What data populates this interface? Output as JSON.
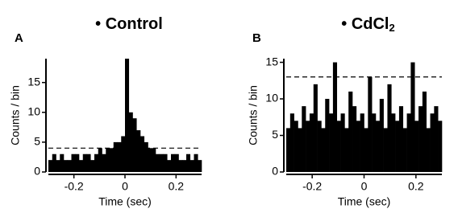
{
  "chart_data": [
    {
      "type": "histogram",
      "panel": "A",
      "title": "• Control",
      "xlabel": "Time (sec)",
      "ylabel": "Counts / bin",
      "bins": [
        -0.3,
        -0.285,
        -0.27,
        -0.255,
        -0.24,
        -0.225,
        -0.21,
        -0.195,
        -0.18,
        -0.165,
        -0.15,
        -0.135,
        -0.12,
        -0.105,
        -0.09,
        -0.075,
        -0.06,
        -0.045,
        -0.03,
        -0.015,
        0,
        0.015,
        0.03,
        0.045,
        0.06,
        0.075,
        0.09,
        0.105,
        0.12,
        0.135,
        0.15,
        0.165,
        0.18,
        0.195,
        0.21,
        0.225,
        0.24,
        0.255,
        0.27,
        0.285,
        0.3
      ],
      "values": [
        2,
        3,
        2,
        3,
        2,
        2,
        3,
        3,
        2,
        3,
        3,
        2,
        3,
        4,
        3,
        4,
        4,
        5,
        5,
        6,
        19,
        10,
        9,
        7,
        6,
        5,
        4,
        4,
        3,
        3,
        3,
        2,
        3,
        3,
        2,
        2,
        3,
        2,
        3,
        2
      ],
      "color": "#000000",
      "threshold": 4,
      "xlim": [
        -0.3,
        0.3
      ],
      "xticks": [
        -0.2,
        0,
        0.2
      ],
      "ylim": [
        0,
        19
      ],
      "yticks": [
        0,
        5,
        10,
        15
      ]
    },
    {
      "type": "histogram",
      "panel": "B",
      "title": "• CdCl",
      "title_subscript": "2",
      "xlabel": "Time (sec)",
      "ylabel": "Counts / bin",
      "bins": [
        -0.3,
        -0.285,
        -0.27,
        -0.255,
        -0.24,
        -0.225,
        -0.21,
        -0.195,
        -0.18,
        -0.165,
        -0.15,
        -0.135,
        -0.12,
        -0.105,
        -0.09,
        -0.075,
        -0.06,
        -0.045,
        -0.03,
        -0.015,
        0,
        0.015,
        0.03,
        0.045,
        0.06,
        0.075,
        0.09,
        0.105,
        0.12,
        0.135,
        0.15,
        0.165,
        0.18,
        0.195,
        0.21,
        0.225,
        0.24,
        0.255,
        0.27,
        0.285,
        0.3
      ],
      "values": [
        6,
        8,
        7,
        6,
        9,
        7,
        8,
        12,
        7,
        6,
        10,
        8,
        15,
        7,
        8,
        6,
        11,
        9,
        7,
        8,
        6,
        13,
        8,
        7,
        10,
        6,
        12,
        8,
        7,
        9,
        6,
        8,
        15,
        7,
        9,
        11,
        6,
        8,
        9,
        7
      ],
      "color": "#000000",
      "threshold": 13,
      "xlim": [
        -0.3,
        0.3
      ],
      "xticks": [
        -0.2,
        0,
        0.2
      ],
      "ylim": [
        0,
        15.5
      ],
      "yticks": [
        0,
        5,
        10,
        15
      ]
    }
  ]
}
